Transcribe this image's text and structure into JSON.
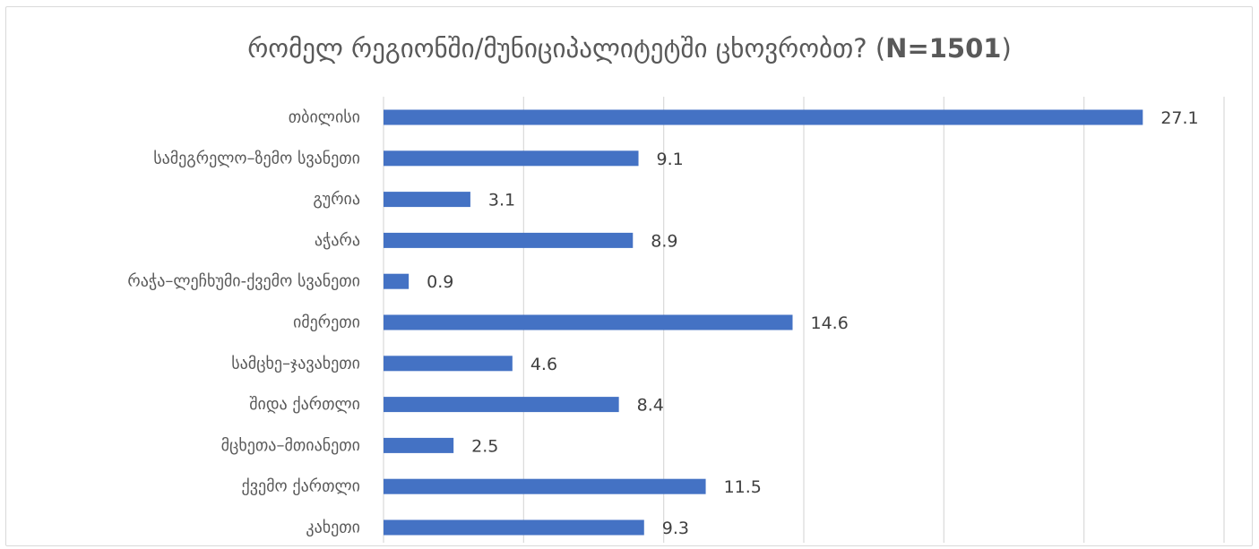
{
  "chart_data": {
    "type": "bar",
    "orientation": "horizontal",
    "title": "რომელ რეგიონში/მუნიციპალიტეტში ცხოვრობთ? (N=1501)",
    "title_main": "რომელ რეგიონში/მუნიციპალიტეტში ცხოვრობთ? (",
    "title_n": "N=1501",
    "title_end": ")",
    "categories": [
      "თბილისი",
      "სამეგრელო–ზემო სვანეთი",
      "გურია",
      "აჭარა",
      "რაჭა–ლეჩხუმი-ქვემო სვანეთი",
      "იმერეთი",
      "სამცხე–ჯავახეთი",
      "შიდა ქართლი",
      "მცხეთა–მთიანეთი",
      "ქვემო ქართლი",
      "კახეთი"
    ],
    "values": [
      27.1,
      9.1,
      3.1,
      8.9,
      0.9,
      14.6,
      4.6,
      8.4,
      2.5,
      11.5,
      9.3
    ],
    "value_labels": [
      "27.1",
      "9.1",
      "3.1",
      "8.9",
      "0.9",
      "14.6",
      "4.6",
      "8.4",
      "2.5",
      "11.5",
      "9.3"
    ],
    "xlim": [
      0,
      30
    ],
    "x_gridlines": [
      0,
      5,
      10,
      15,
      20,
      25,
      30
    ],
    "x_tick_labels_visible": false,
    "grid": true,
    "legend": "none",
    "xlabel": "",
    "ylabel": "",
    "bar_color": "#4472c4",
    "grid_color": "#d9d9d9"
  }
}
